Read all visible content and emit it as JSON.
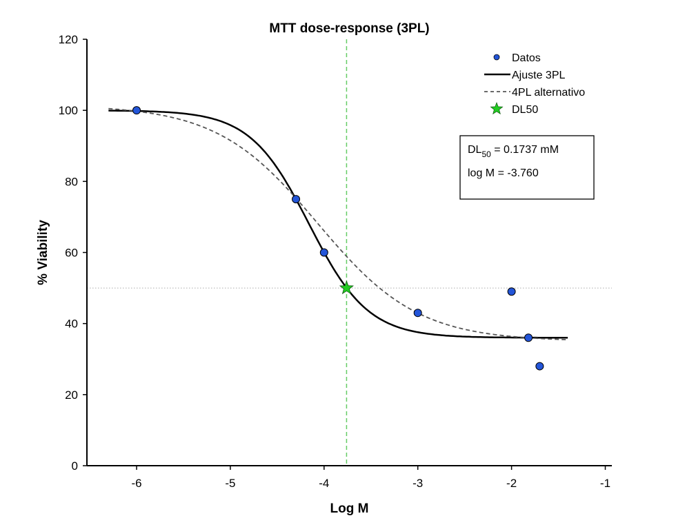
{
  "chart_data": {
    "type": "scatter",
    "title": "MTT dose-response (3PL)",
    "xlabel": "Log M",
    "ylabel": "% Viability",
    "xlim": [
      -6.53,
      -0.93
    ],
    "ylim": [
      0,
      120
    ],
    "xticks": [
      -6,
      -5,
      -4,
      -3,
      -2,
      -1
    ],
    "yticks": [
      0,
      20,
      40,
      60,
      80,
      100,
      120
    ],
    "grid": false,
    "legend_position": "top-right",
    "series": [
      {
        "name": "Datos",
        "kind": "points",
        "color": "#2355d8",
        "x": [
          -6,
          -4.3,
          -4,
          -3,
          -2,
          -1.82,
          -1.7
        ],
        "y": [
          100,
          75,
          60,
          43,
          49,
          36,
          28
        ]
      },
      {
        "name": "Ajuste 3PL",
        "kind": "curve",
        "color": "#000000",
        "model": {
          "top": 100,
          "bottom": 36,
          "logEC50": -4.16,
          "hill": 1.38
        },
        "x_range": [
          -6.3,
          -1.4
        ]
      },
      {
        "name": "4PL alternativo",
        "kind": "curve-dashed",
        "color": "#555555",
        "model": {
          "top": 101.5,
          "bottom": 35,
          "logEC50": -4.07,
          "hill": 0.81
        },
        "x_range": [
          -6.3,
          -1.4
        ]
      },
      {
        "name": "DL50",
        "kind": "star",
        "color": "#22cc22",
        "x": [
          -3.76
        ],
        "y": [
          50
        ]
      }
    ],
    "reference_lines": {
      "vertical_x": -3.76,
      "vertical_color": "#66cc66",
      "horizontal_y": 50,
      "horizontal_color": "#aaaaaa"
    },
    "annotation": {
      "line1_prefix": "DL",
      "line1_sub": "50",
      "line1_suffix": " = 0.1737 mM",
      "line2": "log M = -3.760"
    }
  }
}
